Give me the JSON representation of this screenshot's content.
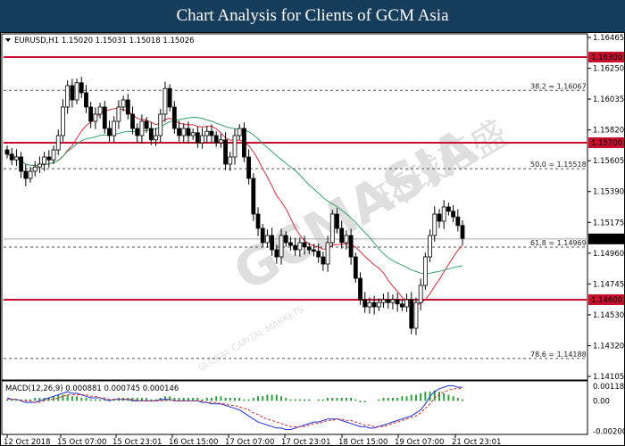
{
  "banner": {
    "title": "Chart Analysis for Clients of GCM Asia"
  },
  "watermark": {
    "brand": "GCMASIA",
    "chinese": "环球汇盛",
    "subtitle": "GLOBAL CAPITAL MARKETS"
  },
  "chart_data": [
    {
      "type": "candlestick",
      "symbol_header": "EURUSD,H1  1.15020 1.15031 1.15018 1.15026",
      "ylim": [
        1.1405,
        1.1645
      ],
      "y_ticks": [
        "1.16465",
        "1.16250",
        "1.16035",
        "1.15820",
        "1.15605",
        "1.15390",
        "1.15175",
        "1.14960",
        "1.14745",
        "1.14530",
        "1.14320",
        "1.14105"
      ],
      "x_ticks": [
        "12 Oct 2018",
        "15 Oct 07:00",
        "15 Oct 23:01",
        "16 Oct 15:00",
        "17 Oct 07:00",
        "17 Oct 23:01",
        "18 Oct 15:00",
        "19 Oct 07:00",
        "21 Oct 23:01"
      ],
      "current_price": "1.15026",
      "horizontal_levels": [
        {
          "value": 1.163,
          "label": "1.16300",
          "color": "#c8102e"
        },
        {
          "value": 1.157,
          "label": "1.15700",
          "color": "#c8102e"
        },
        {
          "value": 1.146,
          "label": "1.14600",
          "color": "#c8102e"
        }
      ],
      "fibonacci_levels": [
        {
          "value": 1.16067,
          "label": "38.2 = 1.16067"
        },
        {
          "value": 1.15518,
          "label": "50.0 = 1.15518"
        },
        {
          "value": 1.14969,
          "label": "61.8 = 1.14969"
        },
        {
          "value": 1.14188,
          "label": "78.6 = 1.14188"
        }
      ],
      "closes": [
        1.1562,
        1.1558,
        1.156,
        1.155,
        1.1545,
        1.155,
        1.1553,
        1.1555,
        1.156,
        1.1558,
        1.1565,
        1.1575,
        1.1595,
        1.161,
        1.16,
        1.1612,
        1.1605,
        1.1595,
        1.1585,
        1.159,
        1.1595,
        1.158,
        1.1575,
        1.1585,
        1.1595,
        1.16,
        1.159,
        1.158,
        1.1575,
        1.1585,
        1.158,
        1.1572,
        1.1575,
        1.159,
        1.1608,
        1.1595,
        1.158,
        1.1575,
        1.158,
        1.1575,
        1.1577,
        1.157,
        1.1575,
        1.1578,
        1.1575,
        1.157,
        1.1572,
        1.1555,
        1.156,
        1.1575,
        1.158,
        1.156,
        1.1545,
        1.152,
        1.151,
        1.15,
        1.1505,
        1.1495,
        1.149,
        1.1505,
        1.15,
        1.1498,
        1.1495,
        1.15,
        1.1497,
        1.1495,
        1.1494,
        1.149,
        1.1485,
        1.15,
        1.152,
        1.151,
        1.15,
        1.1505,
        1.149,
        1.1475,
        1.146,
        1.1455,
        1.1458,
        1.1455,
        1.1458,
        1.146,
        1.1458,
        1.146,
        1.1457,
        1.1455,
        1.146,
        1.144,
        1.1458,
        1.147,
        1.149,
        1.1505,
        1.152,
        1.1515,
        1.1525,
        1.1522,
        1.1518,
        1.1512,
        1.1503
      ],
      "indicator": {
        "name": "MACD",
        "header": "MACD(12,26,9) 0.000881 0.000745 0.000146",
        "ylim": [
          -0.0021,
          0.0012
        ],
        "y_ticks": [
          "0.001181",
          "0.00",
          "-0.002004"
        ],
        "histogram": [
          0.0001,
          0.0001,
          0.0001,
          0.0001,
          0.0001,
          0.0001,
          0.0002,
          0.0002,
          0.0002,
          0.0002,
          0.0003,
          0.0004,
          0.0004,
          0.0004,
          0.0003,
          0.0003,
          0.0002,
          0.0002,
          0.0001,
          0.0001,
          0.0001,
          0.0001,
          0.0001,
          0.0001,
          0.0002,
          0.0002,
          0.0002,
          0.0002,
          0.0002,
          0.0002,
          0.0002,
          0.0001,
          0.0001,
          0.0002,
          0.0003,
          0.0003,
          0.0002,
          0.0002,
          0.0002,
          0.0002,
          0.0002,
          0.0002,
          0.0001,
          0.0002,
          0.0002,
          0.0003,
          0.0003,
          0.0002,
          0.0002,
          0.0002,
          0.0002,
          0.0001,
          0.0001,
          0.0002,
          0.0003,
          0.0003,
          0.0004,
          0.0004,
          0.0004,
          0.0003,
          0.0002,
          0.0001,
          0.0001,
          0.0001,
          0.0001,
          0.0001,
          0.0,
          0.0001,
          0.0001,
          0.0002,
          0.0002,
          0.0002,
          0.0002,
          0.0002,
          0.0002,
          0.0001,
          -0.0001,
          -0.0001,
          0,
          0,
          0.0001,
          0.0002,
          0.0002,
          0.0002,
          0.0002,
          0.0003,
          0.0003,
          0.0004,
          0.0004,
          0.0005,
          0.0006,
          0.0006,
          0.0007,
          0.0006,
          0.0005,
          0.0004,
          0.0003,
          0.0002,
          0.0001
        ],
        "macd_line": [
          0.0002,
          0.0001,
          0.0001,
          0.0,
          -0.0001,
          -0.0001,
          -0.0001,
          0.0,
          0.0001,
          0.0002,
          0.0003,
          0.0004,
          0.0005,
          0.0006,
          0.0005,
          0.0005,
          0.0004,
          0.0003,
          0.0002,
          0.0002,
          0.0002,
          0.0001,
          0.0,
          0.0001,
          0.0001,
          0.0001,
          0.0001,
          0.0,
          0.0,
          0.0,
          0.0,
          0.0,
          0.0,
          0.0001,
          0.0001,
          0.0001,
          0.0,
          0.0,
          0.0,
          0.0,
          0.0,
          0.0,
          -0.0001,
          -0.0001,
          -0.0002,
          -0.0002,
          -0.0002,
          -0.0003,
          -0.0004,
          -0.0005,
          -0.0006,
          -0.0008,
          -0.001,
          -0.0012,
          -0.0014,
          -0.0015,
          -0.0016,
          -0.0017,
          -0.0018,
          -0.0018,
          -0.0019,
          -0.0019,
          -0.0018,
          -0.0017,
          -0.0016,
          -0.0015,
          -0.0014,
          -0.0014,
          -0.0013,
          -0.0012,
          -0.0012,
          -0.0012,
          -0.0013,
          -0.0014,
          -0.0015,
          -0.0016,
          -0.0017,
          -0.0017,
          -0.0018,
          -0.0018,
          -0.0017,
          -0.0016,
          -0.0015,
          -0.0014,
          -0.0013,
          -0.0012,
          -0.0011,
          -0.001,
          -0.0008,
          -0.0006,
          -0.0002,
          0.0003,
          0.0006,
          0.0008,
          0.0009,
          0.001,
          0.001,
          0.0009,
          0.0009
        ],
        "signal_line": [
          0.0001,
          0.0001,
          0.0001,
          0.0,
          0.0,
          0.0,
          -0.0001,
          -0.0001,
          0.0,
          0.0001,
          0.0001,
          0.0002,
          0.0003,
          0.0004,
          0.0004,
          0.0004,
          0.0004,
          0.0004,
          0.0003,
          0.0003,
          0.0002,
          0.0002,
          0.0001,
          0.0001,
          0.0001,
          0.0001,
          0.0001,
          0.0001,
          0.0,
          0.0,
          0.0,
          0.0,
          0.0,
          0.0,
          0.0,
          0.0001,
          0.0,
          0.0,
          0.0,
          0.0,
          0.0,
          0.0,
          0.0,
          -0.0001,
          -0.0001,
          -0.0001,
          -0.0002,
          -0.0002,
          -0.0003,
          -0.0003,
          -0.0004,
          -0.0005,
          -0.0006,
          -0.0008,
          -0.0009,
          -0.0011,
          -0.0012,
          -0.0013,
          -0.0014,
          -0.0015,
          -0.0016,
          -0.0017,
          -0.0017,
          -0.0017,
          -0.0017,
          -0.0016,
          -0.0015,
          -0.0015,
          -0.0014,
          -0.0013,
          -0.0013,
          -0.0012,
          -0.0012,
          -0.0013,
          -0.0013,
          -0.0014,
          -0.0015,
          -0.0016,
          -0.0016,
          -0.0017,
          -0.0017,
          -0.0017,
          -0.0016,
          -0.0015,
          -0.0014,
          -0.0013,
          -0.0012,
          -0.0011,
          -0.001,
          -0.0008,
          -0.0005,
          -0.0002,
          0.0002,
          0.0004,
          0.0006,
          0.0007,
          0.0008,
          0.0008,
          0.0008
        ]
      }
    }
  ]
}
